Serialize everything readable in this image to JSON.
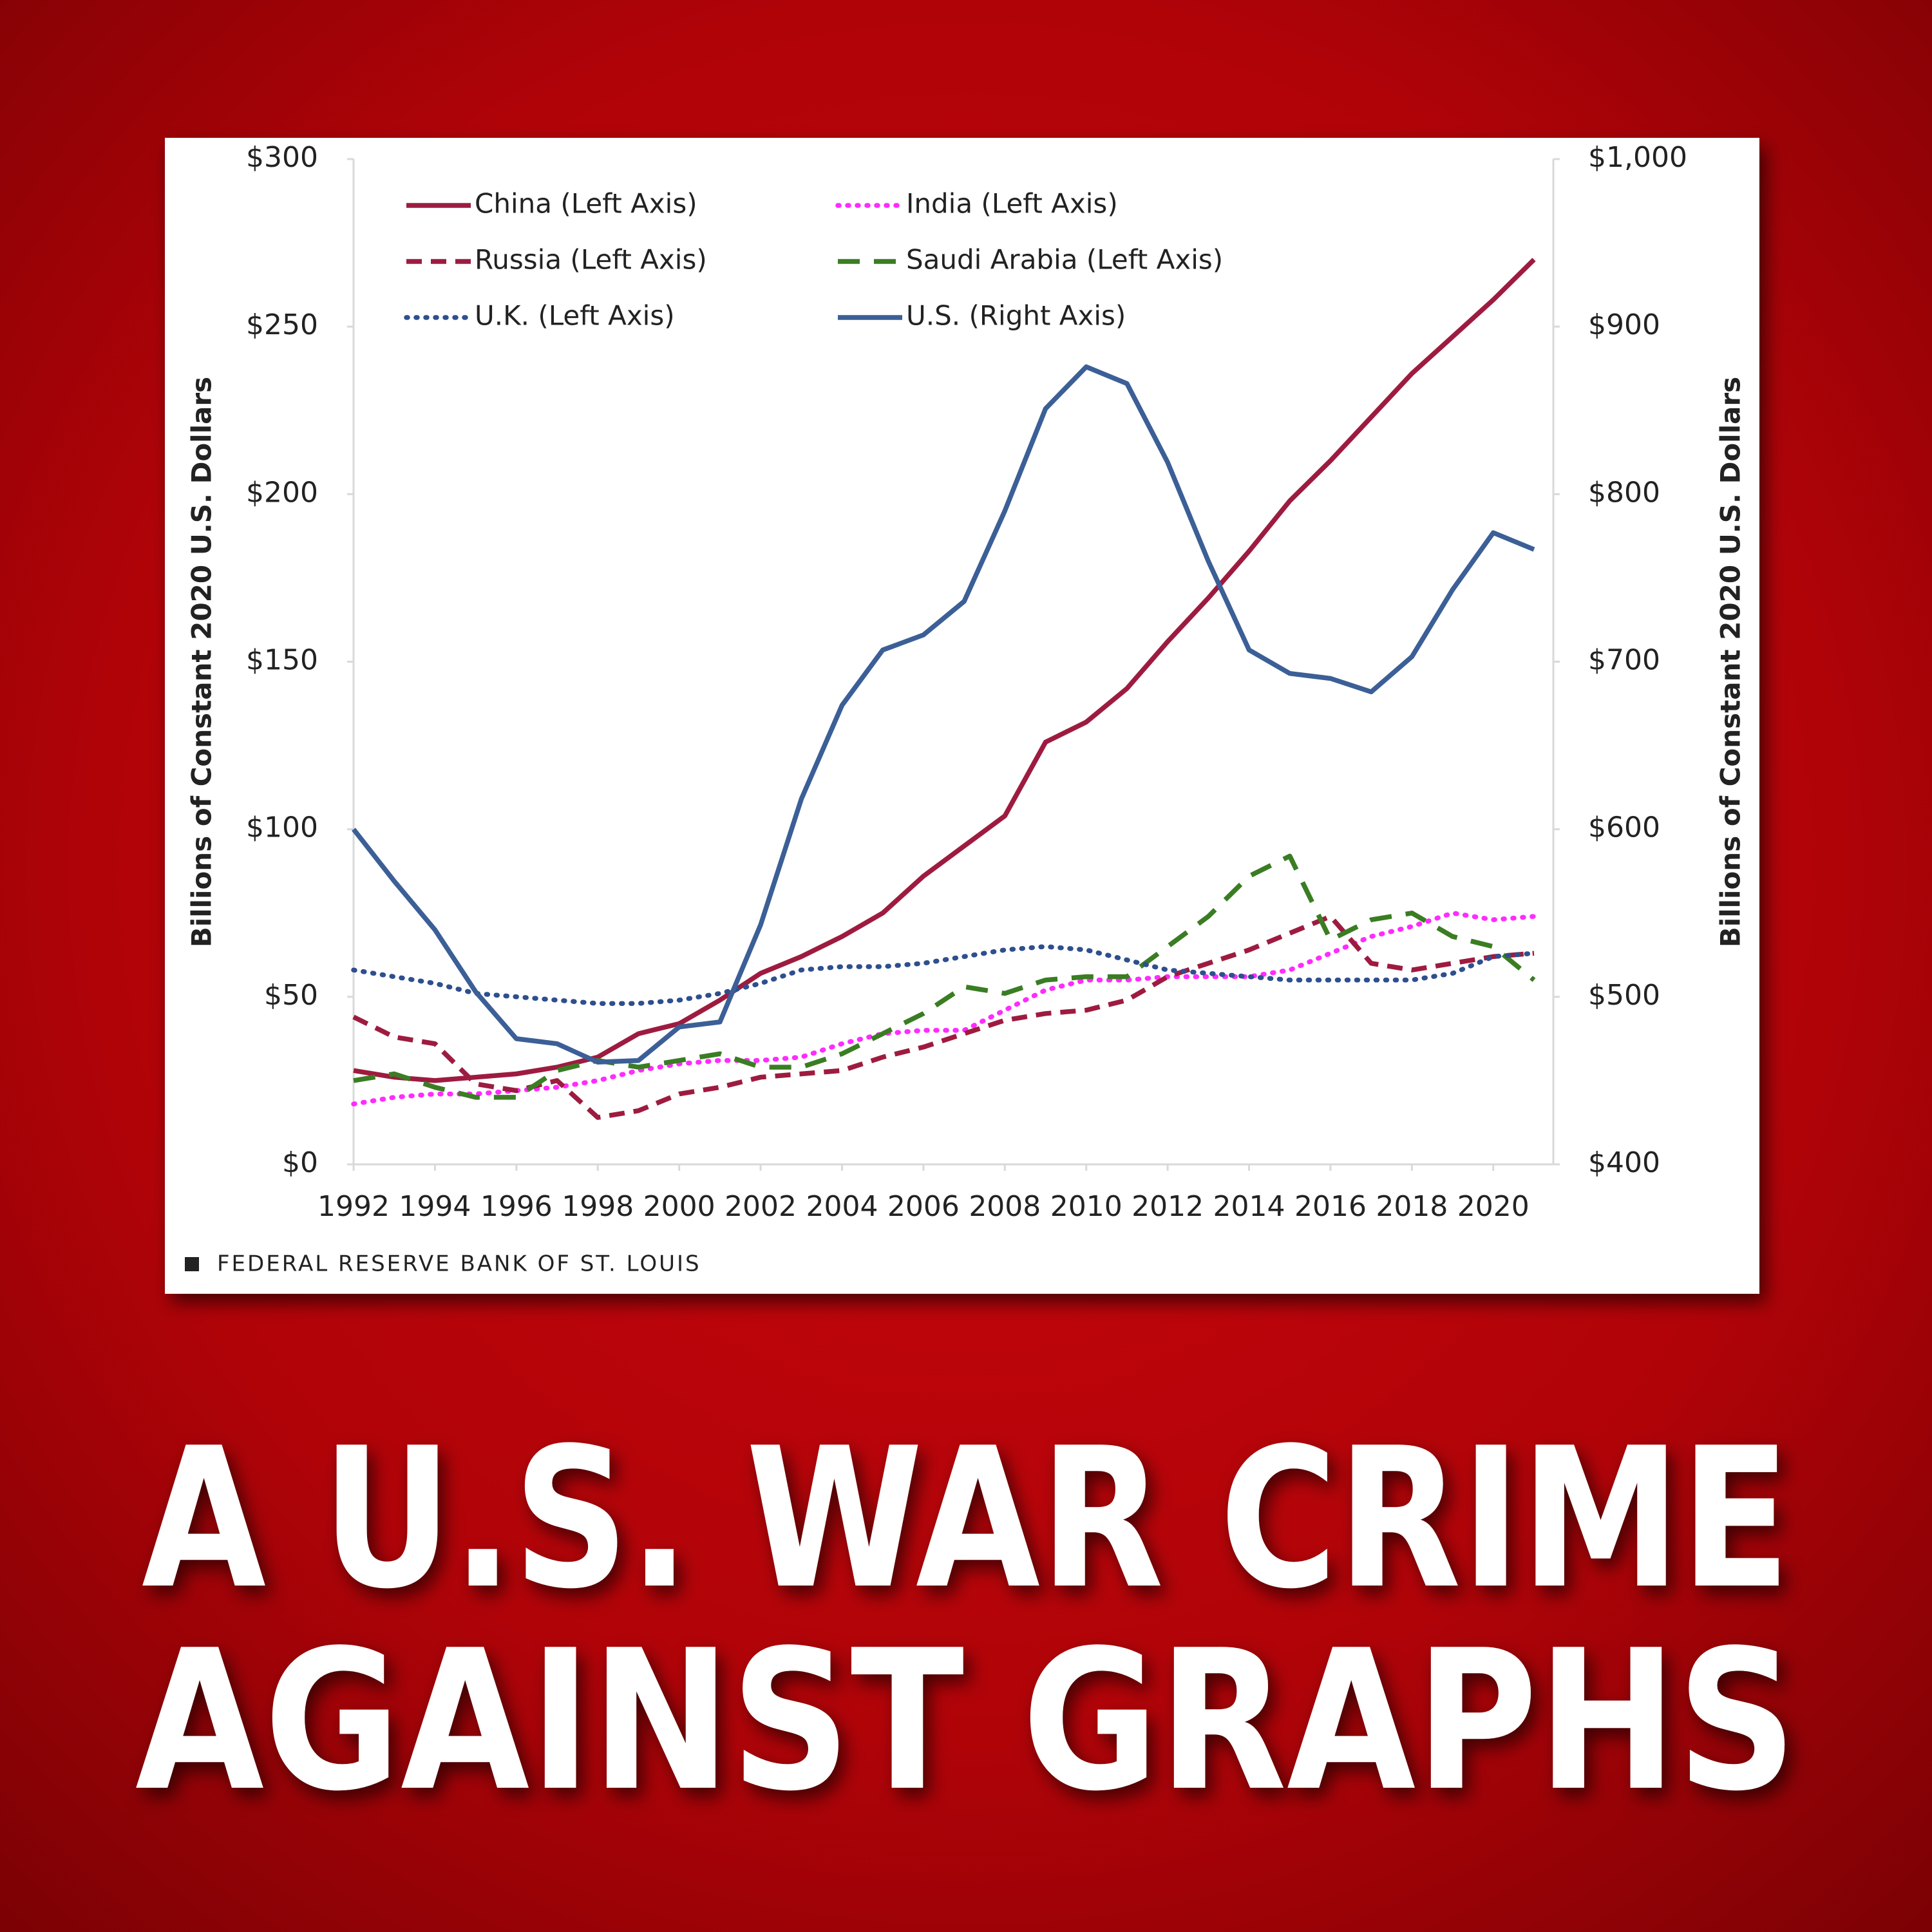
{
  "headline": [
    "A U.S. WAR CRIME",
    "AGAINST GRAPHS"
  ],
  "chart_data": {
    "type": "line",
    "source": "FEDERAL RESERVE BANK OF ST. LOUIS",
    "ylabel": "Billions of Constant  2020 U.S. Dollars",
    "y2label": "Billions of Constant  2020 U.S. Dollars",
    "x": [
      1992,
      1993,
      1994,
      1995,
      1996,
      1997,
      1998,
      1999,
      2000,
      2001,
      2002,
      2003,
      2004,
      2005,
      2006,
      2007,
      2008,
      2009,
      2010,
      2011,
      2012,
      2013,
      2014,
      2015,
      2016,
      2017,
      2018,
      2019,
      2020,
      2021
    ],
    "xlim": [
      1992,
      2021
    ],
    "xticks": [
      1992,
      1994,
      1996,
      1998,
      2000,
      2002,
      2004,
      2006,
      2008,
      2010,
      2012,
      2014,
      2016,
      2018,
      2020
    ],
    "ylim": [
      0,
      300
    ],
    "yticks": [
      {
        "value": 0,
        "label": "$0"
      },
      {
        "value": 50,
        "label": "$50"
      },
      {
        "value": 100,
        "label": "$100"
      },
      {
        "value": 150,
        "label": "$150"
      },
      {
        "value": 200,
        "label": "$200"
      },
      {
        "value": 250,
        "label": "$250"
      },
      {
        "value": 300,
        "label": "$300"
      }
    ],
    "y2lim": [
      400,
      1000
    ],
    "y2ticks": [
      {
        "value": 400,
        "label": "$400"
      },
      {
        "value": 500,
        "label": "$500"
      },
      {
        "value": 600,
        "label": "$600"
      },
      {
        "value": 700,
        "label": "$700"
      },
      {
        "value": 800,
        "label": "$800"
      },
      {
        "value": 900,
        "label": "$900"
      },
      {
        "value": 1000,
        "label": "$1,000"
      }
    ],
    "series": [
      {
        "name": "China (Left Axis)",
        "color": "#9e1b40",
        "dash": "solid",
        "axis": "y",
        "values": [
          28,
          26,
          25,
          26,
          27,
          29,
          32,
          39,
          42,
          49,
          57,
          62,
          68,
          75,
          86,
          95,
          104,
          126,
          132,
          142,
          156,
          169,
          183,
          198,
          210,
          223,
          236,
          247,
          258,
          270
        ]
      },
      {
        "name": "India (Left Axis)",
        "color": "#ff2bff",
        "dash": "dot",
        "axis": "y",
        "values": [
          18,
          20,
          21,
          21,
          22,
          23,
          25,
          28,
          30,
          31,
          31,
          32,
          36,
          39,
          40,
          40,
          46,
          52,
          55,
          55,
          56,
          56,
          56,
          58,
          63,
          68,
          71,
          75,
          73,
          74
        ]
      },
      {
        "name": "Russia (Left Axis)",
        "color": "#9e1b40",
        "dash": "dash",
        "axis": "y",
        "values": [
          44,
          38,
          36,
          24,
          22,
          25,
          14,
          16,
          21,
          23,
          26,
          27,
          28,
          32,
          35,
          39,
          43,
          45,
          46,
          49,
          56,
          60,
          64,
          69,
          74,
          60,
          58,
          60,
          62,
          63
        ]
      },
      {
        "name": "Saudi Arabia (Left Axis)",
        "color": "#3a7d23",
        "dash": "longdash",
        "axis": "y",
        "values": [
          25,
          27,
          23,
          20,
          20,
          28,
          31,
          29,
          31,
          33,
          29,
          29,
          33,
          39,
          45,
          53,
          51,
          55,
          56,
          56,
          65,
          74,
          86,
          92,
          67,
          73,
          75,
          68,
          65,
          55
        ]
      },
      {
        "name": "U.K. (Left Axis)",
        "color": "#2e4f8e",
        "dash": "dot",
        "axis": "y",
        "values": [
          58,
          56,
          54,
          51,
          50,
          49,
          48,
          48,
          49,
          51,
          54,
          58,
          59,
          59,
          60,
          62,
          64,
          65,
          64,
          61,
          58,
          57,
          56,
          55,
          55,
          55,
          55,
          57,
          62,
          63
        ]
      },
      {
        "name": "U.S. (Right Axis)",
        "color": "#3b5f96",
        "dash": "solid",
        "axis": "y2",
        "values": [
          600,
          569,
          540,
          503,
          475,
          472,
          461,
          462,
          482,
          485,
          543,
          618,
          674,
          707,
          716,
          736,
          790,
          851,
          876,
          866,
          819,
          760,
          707,
          693,
          690,
          682,
          703,
          743,
          777,
          767
        ]
      }
    ]
  }
}
